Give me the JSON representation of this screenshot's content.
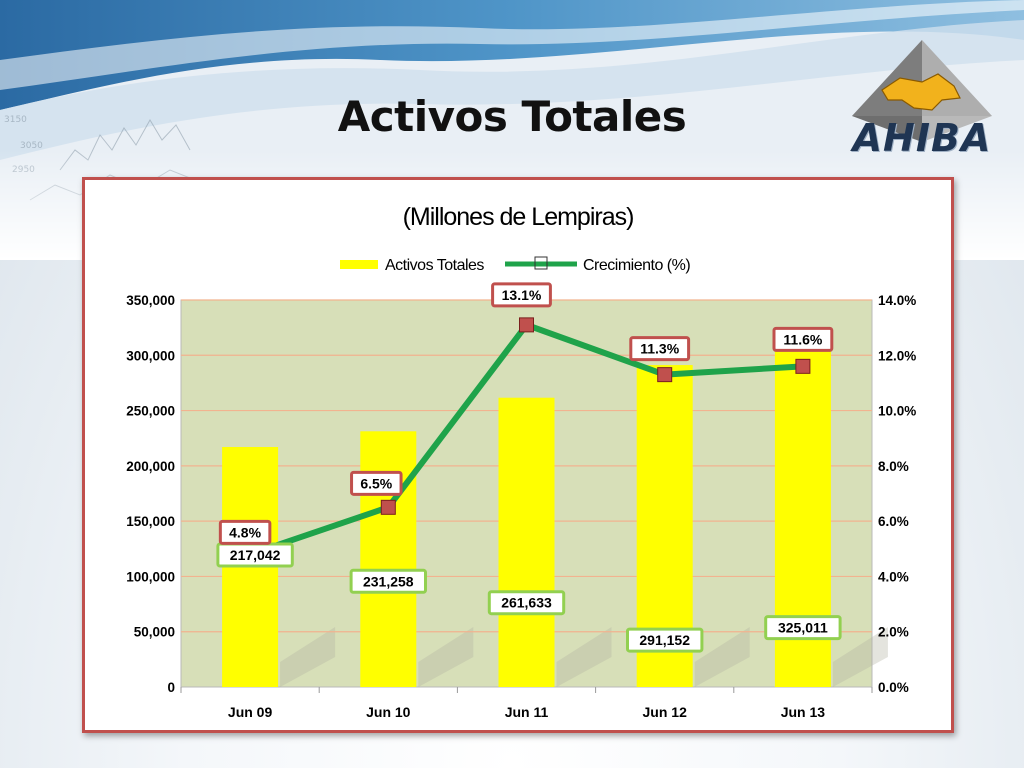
{
  "slide": {
    "title": "Activos Totales",
    "logo_text": "AHIBA"
  },
  "chart_data": {
    "type": "bar",
    "title": "(Millones de Lempiras)",
    "categories": [
      "Jun 09",
      "Jun 10",
      "Jun 11",
      "Jun 12",
      "Jun 13"
    ],
    "category_labels": [
      "Jun\t09\t",
      "Jun\t10\t",
      "Jun\t11\t",
      "Jun\t12\t",
      "Jun\t13\t"
    ],
    "series": [
      {
        "name": "Activos Totales",
        "type": "bar",
        "axis": "left",
        "color": "#ffff00",
        "values": [
          217042,
          231258,
          261633,
          291152,
          325011
        ],
        "labels": [
          "217,042\t",
          "231,258\t",
          "261,633\t",
          "291,152\t",
          "325,011\t"
        ]
      },
      {
        "name": "Crecimiento (%)",
        "type": "line",
        "axis": "right",
        "color": "#1fa34a",
        "marker_color": "#c0504d",
        "values": [
          4.8,
          6.5,
          13.1,
          11.3,
          11.6
        ],
        "labels": [
          "4.8%\t",
          "6.5%\t",
          "13.1%\t",
          "11.3%\t",
          "11.6%\t"
        ]
      }
    ],
    "ylim_left": [
      0,
      350000
    ],
    "ylim_right": [
      0,
      14
    ],
    "yticks_left": [
      "0\t",
      "50,000\t",
      "100,000\t",
      "150,000\t",
      "200,000\t",
      "250,000\t",
      "300,000\t",
      "350,000\t"
    ],
    "yticks_right": [
      "0.0%\t",
      "2.0%\t",
      "4.0%\t",
      "6.0%\t",
      "8.0%\t",
      "10.0%\t",
      "12.0%\t",
      "14.0%\t"
    ],
    "legend_position": "top",
    "grid": true,
    "colors": {
      "plot_bg": "#d7dfb8",
      "grid": "#f2b38f",
      "frame": "#c0504d",
      "bar_label_border": "#92d050",
      "line_label_border": "#c0504d"
    }
  }
}
